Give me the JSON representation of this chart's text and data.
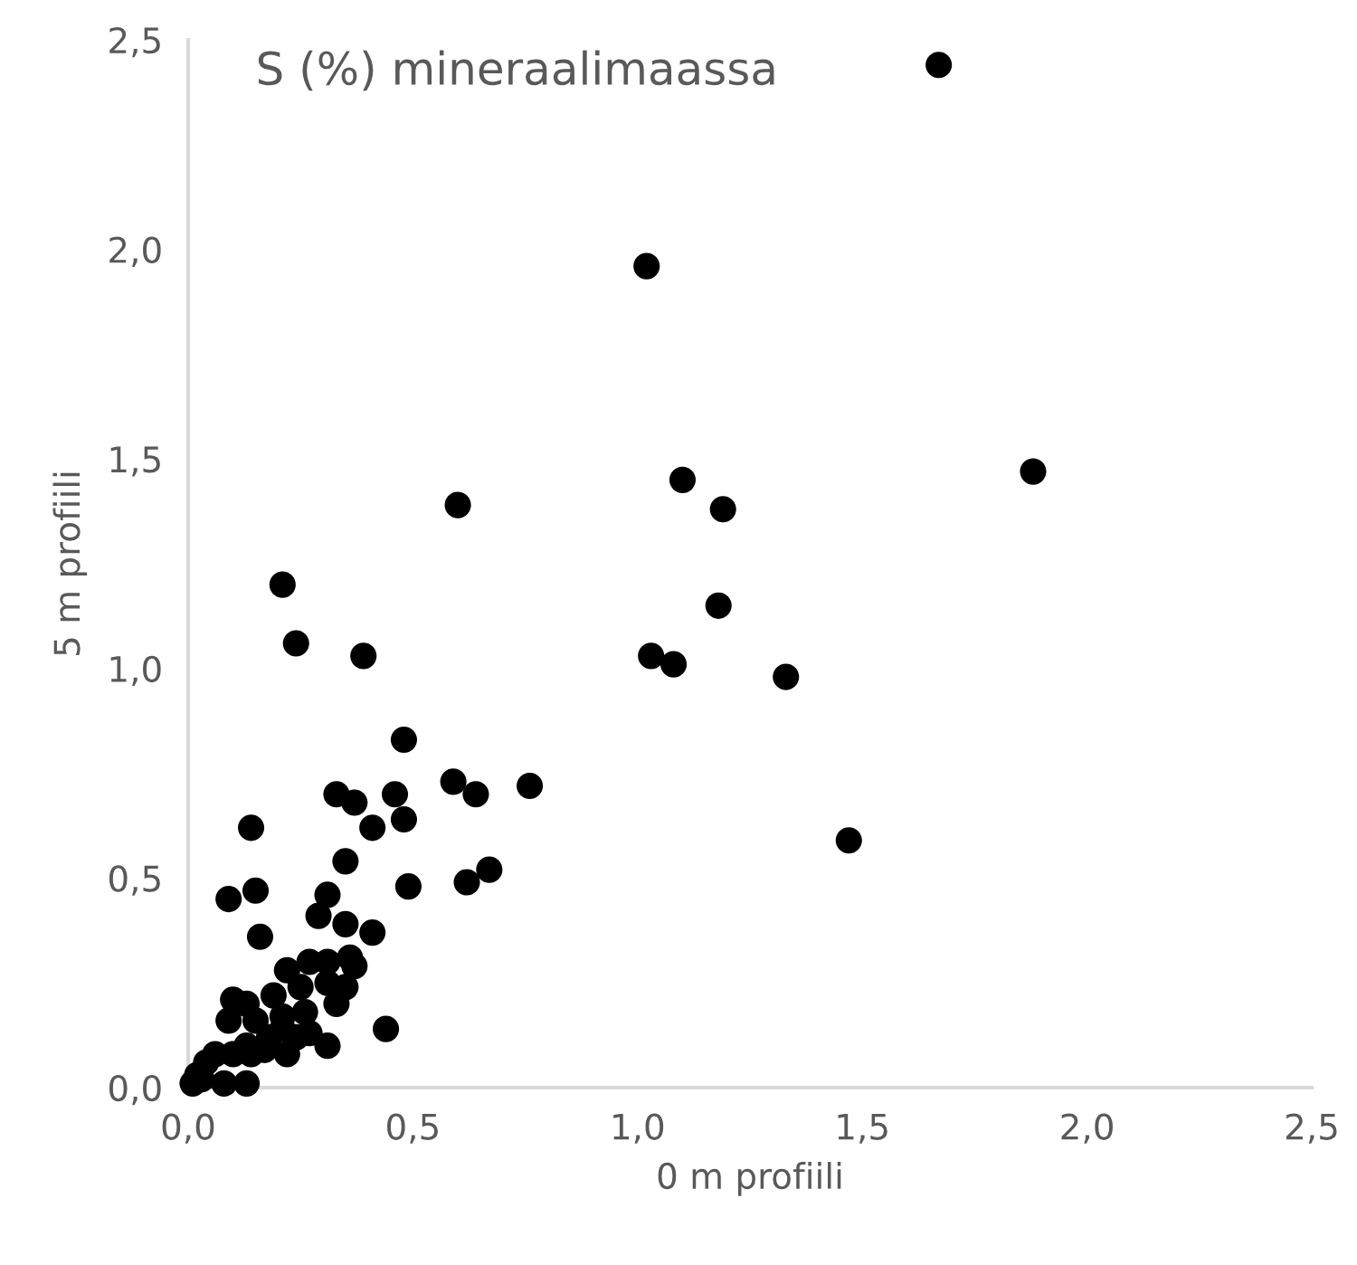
{
  "chart_data": {
    "type": "scatter",
    "title": "S (%) mineraalimaassa",
    "xlabel": "0 m profiili",
    "ylabel": "5 m profiili",
    "xlim": [
      0,
      2.5
    ],
    "ylim": [
      0,
      2.5
    ],
    "xticks": [
      {
        "value": 0,
        "label": "0,0"
      },
      {
        "value": 0.5,
        "label": "0,5"
      },
      {
        "value": 1,
        "label": "1,0"
      },
      {
        "value": 1.5,
        "label": "1,5"
      },
      {
        "value": 2,
        "label": "2,0"
      },
      {
        "value": 2.5,
        "label": "2,5"
      }
    ],
    "yticks": [
      {
        "value": 0,
        "label": "0,0"
      },
      {
        "value": 0.5,
        "label": "0,5"
      },
      {
        "value": 1,
        "label": "1,0"
      },
      {
        "value": 1.5,
        "label": "1,5"
      },
      {
        "value": 2,
        "label": "2,0"
      },
      {
        "value": 2.5,
        "label": "2,5"
      }
    ],
    "grid": false,
    "marker": "circle",
    "series": [
      {
        "color": "#000000",
        "x": [
          1.67,
          1.02,
          1.88,
          1.1,
          1.19,
          0.6,
          0.21,
          1.18,
          0.24,
          0.39,
          1.03,
          1.08,
          1.33,
          0.48,
          1.47,
          0.59,
          0.64,
          0.76,
          0.33,
          0.37,
          0.46,
          0.41,
          0.48,
          0.14,
          0.35,
          0.09,
          0.15,
          0.49,
          0.62,
          0.67,
          0.31,
          0.29,
          0.35,
          0.41,
          0.16,
          0.44,
          0.31,
          0.22,
          0.27,
          0.31,
          0.36,
          0.37,
          0.35,
          0.33,
          0.25,
          0.19,
          0.1,
          0.13,
          0.09,
          0.15,
          0.21,
          0.26,
          0.27,
          0.22,
          0.18,
          0.13,
          0.14,
          0.1,
          0.13,
          0.08,
          0.21,
          0.17,
          0.24,
          0.31,
          0.01,
          0.02,
          0.03,
          0.04,
          0.06
        ],
        "values": [
          2.44,
          1.96,
          1.47,
          1.45,
          1.38,
          1.39,
          1.2,
          1.15,
          1.06,
          1.03,
          1.03,
          1.01,
          0.98,
          0.83,
          0.59,
          0.73,
          0.7,
          0.72,
          0.7,
          0.68,
          0.7,
          0.62,
          0.64,
          0.62,
          0.54,
          0.45,
          0.47,
          0.48,
          0.49,
          0.52,
          0.46,
          0.41,
          0.39,
          0.37,
          0.36,
          0.14,
          0.1,
          0.28,
          0.3,
          0.3,
          0.31,
          0.29,
          0.24,
          0.2,
          0.24,
          0.22,
          0.21,
          0.2,
          0.16,
          0.16,
          0.17,
          0.18,
          0.13,
          0.08,
          0.12,
          0.1,
          0.08,
          0.08,
          0.01,
          0.01,
          0.14,
          0.09,
          0.12,
          0.25,
          0.01,
          0.03,
          0.02,
          0.06,
          0.08
        ]
      }
    ]
  }
}
